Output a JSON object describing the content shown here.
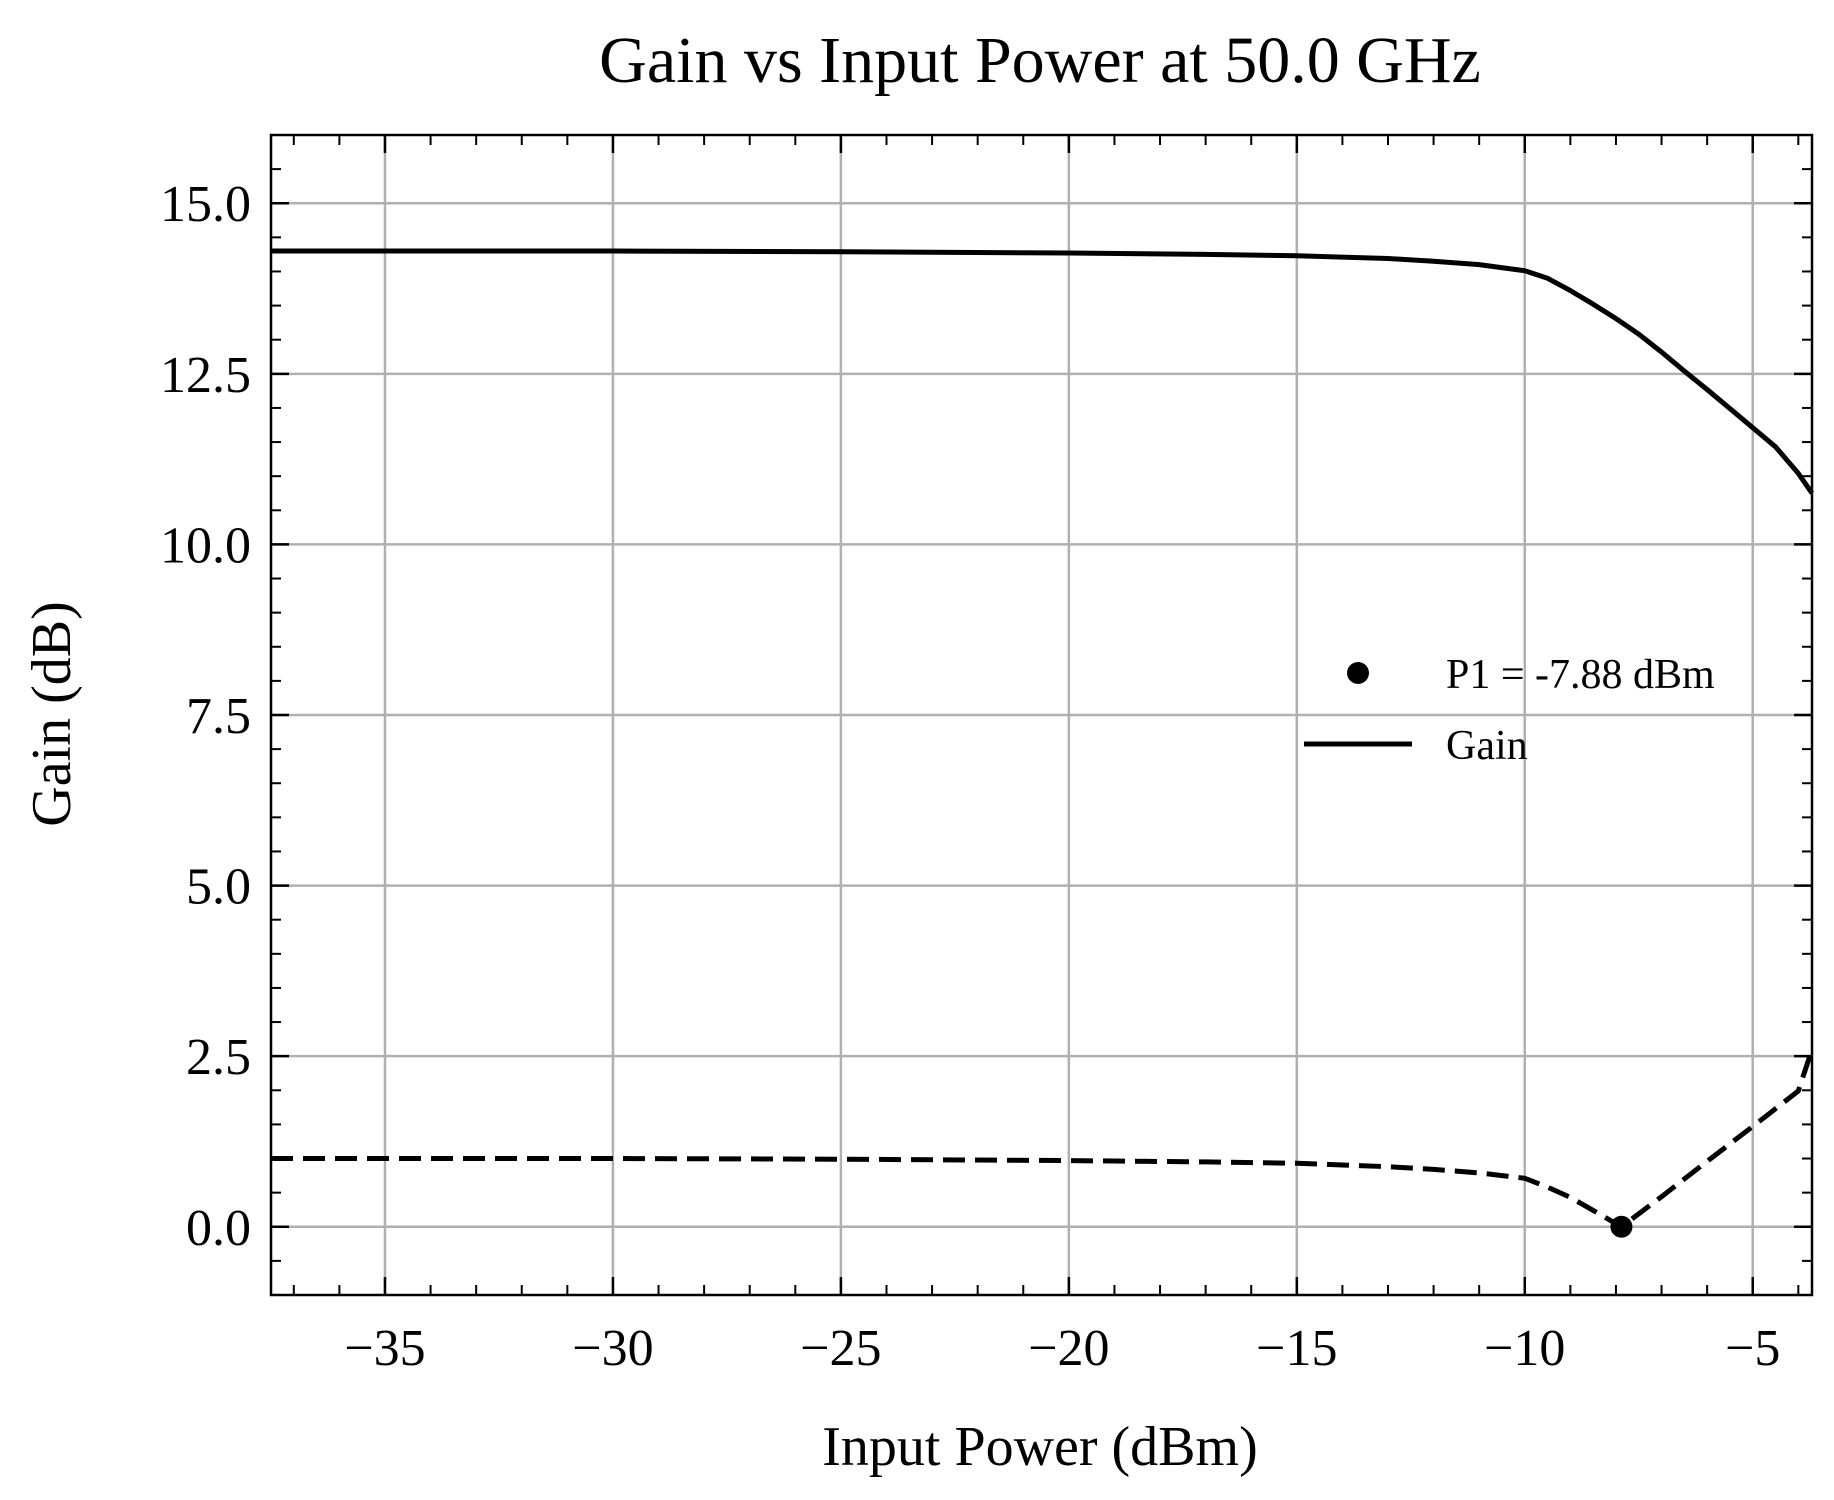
{
  "chart_data": {
    "type": "line",
    "title": "Gain vs Input Power at 50.0 GHz",
    "xlabel": "Input Power (dBm)",
    "ylabel": "Gain (dB)",
    "xlim": [
      -37.5,
      -3.7
    ],
    "ylim": [
      -1.0,
      16.0
    ],
    "xticks": [
      -35,
      -30,
      -25,
      -20,
      -15,
      -10,
      -5
    ],
    "xtick_labels": [
      "−35",
      "−30",
      "−25",
      "−20",
      "−15",
      "−10",
      "−5"
    ],
    "yticks": [
      0.0,
      2.5,
      5.0,
      7.5,
      10.0,
      12.5,
      15.0
    ],
    "ytick_labels": [
      "0.0",
      "2.5",
      "5.0",
      "7.5",
      "10.0",
      "12.5",
      "15.0"
    ],
    "grid": true,
    "legend_position": "center-right",
    "series": [
      {
        "name": "Gain",
        "style": "solid",
        "color": "#000000",
        "x": [
          -37.5,
          -35,
          -30,
          -25,
          -20,
          -17,
          -15,
          -13,
          -12,
          -11,
          -10,
          -9.5,
          -9,
          -8.5,
          -8,
          -7.5,
          -7,
          -6.5,
          -6,
          -5.5,
          -5,
          -4.5,
          -4,
          -3.7
        ],
        "y": [
          14.3,
          14.3,
          14.3,
          14.29,
          14.27,
          14.25,
          14.23,
          14.19,
          14.15,
          14.1,
          14.01,
          13.9,
          13.72,
          13.52,
          13.31,
          13.08,
          12.82,
          12.54,
          12.27,
          11.99,
          11.71,
          11.43,
          11.04,
          10.75
        ]
      },
      {
        "name": "",
        "style": "dashed",
        "color": "#000000",
        "x": [
          -37.5,
          -35,
          -30,
          -25,
          -20,
          -17,
          -15,
          -13,
          -12,
          -11,
          -10,
          -9.5,
          -9,
          -8.5,
          -7.88,
          -7,
          -6,
          -5,
          -4,
          -3.7
        ],
        "y": [
          1.0,
          1.0,
          1.0,
          0.99,
          0.97,
          0.95,
          0.93,
          0.88,
          0.84,
          0.79,
          0.71,
          0.58,
          0.43,
          0.24,
          0.0,
          0.44,
          0.96,
          1.47,
          1.99,
          2.6
        ]
      }
    ],
    "points": [
      {
        "name": "P1 = -7.88 dBm",
        "x": -7.88,
        "y": 0.0
      }
    ],
    "legend": [
      {
        "label": "P1 = -7.88 dBm",
        "marker": "dot"
      },
      {
        "label": "Gain",
        "marker": "line"
      }
    ]
  }
}
